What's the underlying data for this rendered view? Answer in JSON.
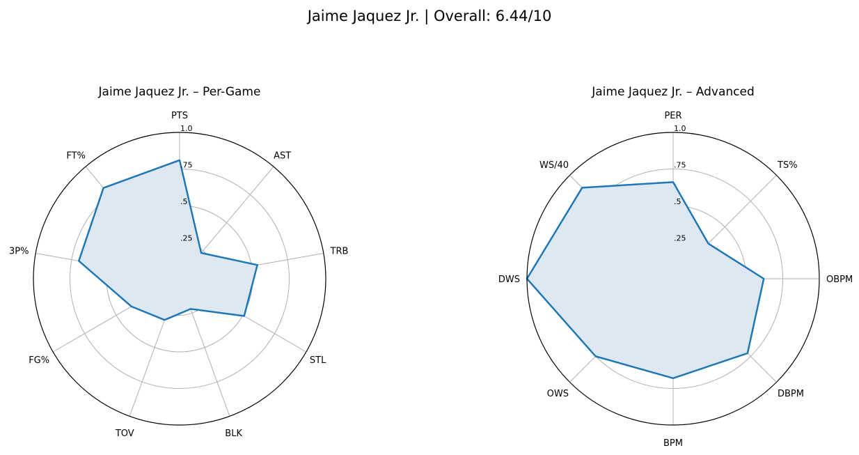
{
  "figure": {
    "suptitle": "Jaime Jaquez Jr. | Overall: 6.44/10"
  },
  "chart_data": [
    {
      "type": "radar",
      "title": "Jaime Jaquez Jr. – Per-Game",
      "categories": [
        "PTS",
        "AST",
        "TRB",
        "STL",
        "BLK",
        "TOV",
        "FG%",
        "3P%",
        "FT%"
      ],
      "values": [
        0.81,
        0.23,
        0.54,
        0.51,
        0.22,
        0.3,
        0.38,
        0.7,
        0.81
      ],
      "radial_ticks": [
        0.25,
        0.5,
        0.75,
        1.0
      ],
      "radial_tick_labels": [
        ".25",
        ".5",
        ".75",
        "1.0"
      ],
      "rlim": [
        0,
        1
      ],
      "line_color": "#1f77b4",
      "fill_color": "#dde8f3",
      "grid": true
    },
    {
      "type": "radar",
      "title": "Jaime Jaquez Jr. – Advanced",
      "categories": [
        "PER",
        "TS%",
        "OBPM",
        "DBPM",
        "BPM",
        "OWS",
        "DWS",
        "WS/40"
      ],
      "values": [
        0.66,
        0.34,
        0.62,
        0.72,
        0.68,
        0.75,
        1.0,
        0.88
      ],
      "radial_ticks": [
        0.25,
        0.5,
        0.75,
        1.0
      ],
      "radial_tick_labels": [
        ".25",
        ".5",
        ".75",
        "1.0"
      ],
      "rlim": [
        0,
        1
      ],
      "line_color": "#1f77b4",
      "fill_color": "#dde8f3",
      "grid": true
    }
  ]
}
